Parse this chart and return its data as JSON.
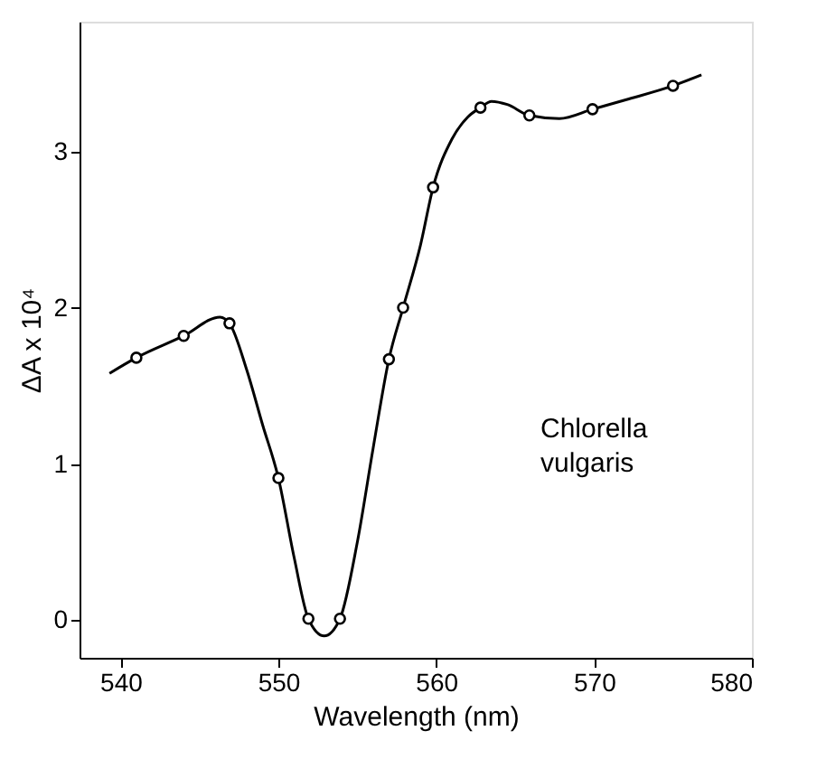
{
  "chart_data": {
    "type": "line",
    "xlabel": "Wavelength  (nm)",
    "ylabel": "ΔA x 10⁴",
    "xlim": [
      537.4,
      580
    ],
    "xticks": [
      540,
      550,
      560,
      570,
      580
    ],
    "ylim": [
      -0.24,
      3.83
    ],
    "yticks": [
      0,
      1,
      2,
      3
    ],
    "grid": false,
    "series": [
      {
        "color": "#000000",
        "marker": "none",
        "line_style": "solid",
        "x": [
          539.3,
          541.0,
          544.0,
          546.3,
          546.9,
          548,
          549,
          550.0,
          551,
          551.9,
          552.9,
          553.9,
          555,
          556,
          557.0,
          557.9,
          559,
          559.8,
          561,
          562,
          562.8,
          563.5,
          564.5,
          565.9,
          567.8,
          569.9,
          572,
          575.0,
          576.8
        ],
        "values": [
          1.58,
          1.68,
          1.82,
          1.94,
          1.9,
          1.6,
          1.25,
          0.91,
          0.4,
          0.01,
          -0.1,
          0.01,
          0.5,
          1.1,
          1.67,
          2.0,
          2.4,
          2.77,
          3.08,
          3.22,
          3.28,
          3.32,
          3.3,
          3.23,
          3.21,
          3.27,
          3.33,
          3.42,
          3.49
        ]
      },
      {
        "type": "scatter",
        "color": "#000000",
        "marker": "circle",
        "x": [
          541.0,
          544.0,
          546.9,
          550.0,
          551.9,
          553.9,
          557.0,
          557.9,
          559.8,
          562.8,
          565.9,
          569.9,
          575.0
        ],
        "values": [
          1.68,
          1.82,
          1.9,
          0.91,
          0.01,
          0.01,
          1.67,
          2.0,
          2.77,
          3.28,
          3.23,
          3.27,
          3.42
        ]
      }
    ],
    "annotations": [
      "Chlorella vulgaris"
    ]
  }
}
